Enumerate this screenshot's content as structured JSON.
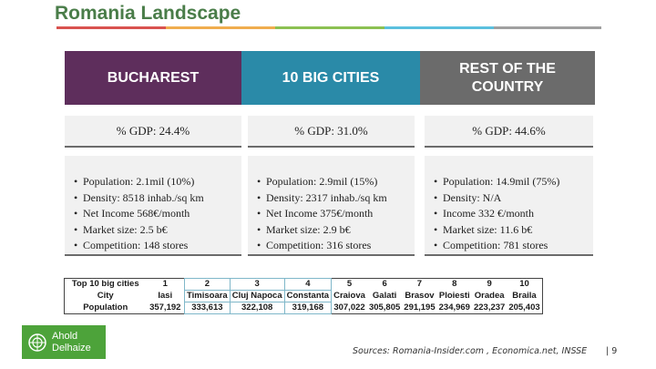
{
  "title": "Romania Landscape",
  "colors": {
    "title_green": "#4a7d49",
    "header_purple": "#5e2e5c",
    "header_teal": "#2a8aa8",
    "header_gray": "#6b6b6b",
    "logo_green": "#4da33a",
    "rule_segments": [
      "#d9534f",
      "#f0ad4e",
      "#8cc152",
      "#5bc0de",
      "#a0a0a0"
    ]
  },
  "columns": [
    {
      "header": "BUCHAREST",
      "gdp": "% GDP: 24.4%",
      "bullets": [
        "Population: 2.1mil (10%)",
        "Density: 8518 inhab./sq km",
        "Net Income 568€/month",
        "Market size: 2.5 b€",
        "Competition: 148 stores"
      ]
    },
    {
      "header": "10 BIG CITIES",
      "gdp": "% GDP: 31.0%",
      "bullets": [
        "Population: 2.9mil (15%)",
        "Density: 2317 inhab./sq km",
        "Net Income 375€/month",
        "Market size: 2.9 b€",
        "Competition: 316 stores"
      ]
    },
    {
      "header": "REST OF THE COUNTRY",
      "gdp": "% GDP: 44.6%",
      "bullets": [
        "Population: 14.9mil (75%)",
        "Density: N/A",
        "Income 332 €/month",
        "Market size: 11.6 b€",
        "Competition: 781 stores"
      ]
    }
  ],
  "table": {
    "row_labels": [
      "Top 10 big cities",
      "City",
      "Population"
    ],
    "ranks": [
      "1",
      "2",
      "3",
      "4",
      "5",
      "6",
      "7",
      "8",
      "9",
      "10"
    ],
    "cities": [
      "Iasi",
      "Timisoara",
      "Cluj Napoca",
      "Constanta",
      "Craiova",
      "Galati",
      "Brasov",
      "Ploiesti",
      "Oradea",
      "Braila"
    ],
    "populations": [
      "357,192",
      "333,613",
      "322,108",
      "319,168",
      "307,022",
      "305,805",
      "291,195",
      "234,969",
      "223,237",
      "205,403"
    ]
  },
  "logo": {
    "line1": "Ahold",
    "line2": "Delhaize",
    "icon": "ahold-delhaize-logo-icon"
  },
  "sources": "Sources: Romania-Insider.com , Economica.net, INSSE",
  "page_number": "| 9"
}
